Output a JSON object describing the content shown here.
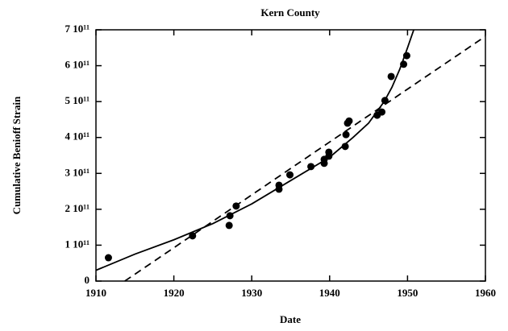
{
  "chart_data": {
    "type": "scatter",
    "title": "Kern County",
    "xlabel": "Date",
    "ylabel": "Cumulative Benioff Strain",
    "color": "#000000",
    "xlim": [
      1910,
      1960
    ],
    "xticks": [
      1910,
      1920,
      1930,
      1940,
      1950,
      1960
    ],
    "ylim": [
      0,
      700000000000
    ],
    "yticks": [
      0,
      {
        "value": 100000000000,
        "label": "1 10¹¹"
      },
      {
        "value": 200000000000,
        "label": "2 10¹¹"
      },
      {
        "value": 300000000000,
        "label": "3 10¹¹"
      },
      {
        "value": 400000000000,
        "label": "4 10¹¹"
      },
      {
        "value": 500000000000,
        "label": "5 10¹¹"
      },
      {
        "value": 600000000000,
        "label": "6 10¹¹"
      },
      {
        "value": 700000000000,
        "label": "7 10¹¹"
      }
    ],
    "points": {
      "x": [
        1911.6,
        1922.4,
        1927.2,
        1927.1,
        1928.0,
        1933.5,
        1933.5,
        1934.9,
        1937.6,
        1939.3,
        1939.3,
        1939.9,
        1939.9,
        1942.0,
        1942.1,
        1942.3,
        1942.5,
        1946.1,
        1946.7,
        1947.1,
        1947.9,
        1949.5,
        1949.9
      ],
      "values": [
        65000000000,
        126000000000,
        182000000000,
        155000000000,
        209000000000,
        267000000000,
        256000000000,
        296000000000,
        319000000000,
        339000000000,
        328000000000,
        359000000000,
        348000000000,
        375000000000,
        408000000000,
        440000000000,
        446000000000,
        462000000000,
        471000000000,
        503000000000,
        570000000000,
        604000000000,
        628000000000
      ]
    },
    "fits": [
      {
        "style": "dashed",
        "x": [
          1913.7,
          1960
        ],
        "values": [
          0,
          682000000000
        ]
      },
      {
        "style": "solid",
        "x": [
          1910,
          1915,
          1920,
          1925,
          1930,
          1935,
          1940,
          1943,
          1945,
          1947,
          1948,
          1949,
          1950,
          1950.8
        ],
        "values": [
          30000000000,
          75000000000,
          115000000000,
          160000000000,
          215000000000,
          280000000000,
          345000000000,
          400000000000,
          440000000000,
          500000000000,
          540000000000,
          590000000000,
          650000000000,
          700000000000
        ]
      }
    ]
  }
}
